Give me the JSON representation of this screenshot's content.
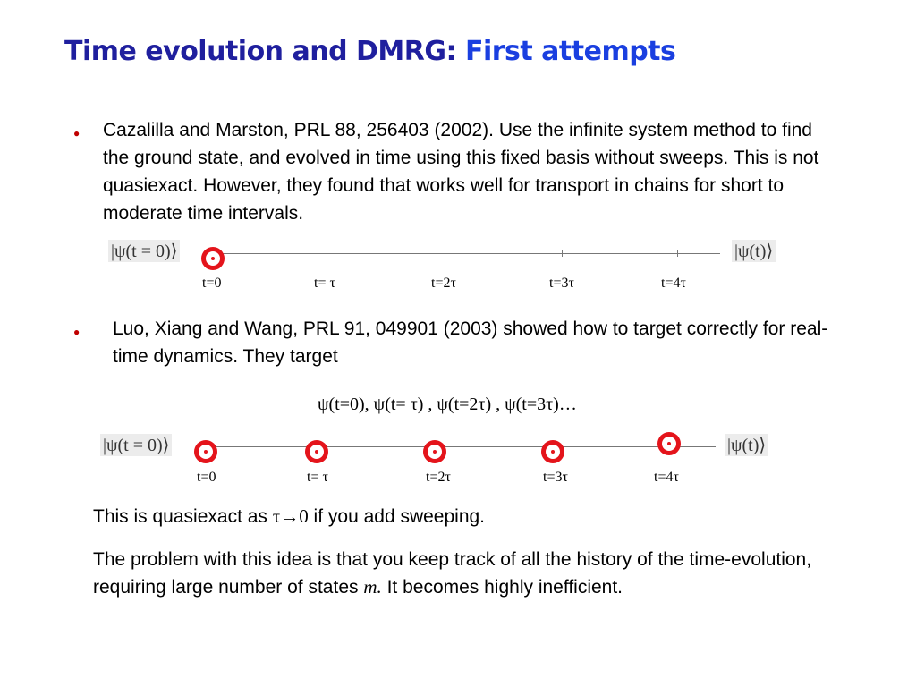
{
  "title": {
    "main": "Time evolution and DMRG:",
    "sub": "First attempts"
  },
  "bullet1": {
    "text": "Cazalilla and Marston, PRL 88, 256403 (2002). Use the infinite system method to find the ground state, and evolved in time using this fixed basis without sweeps. This is not quasiexact. However, they found that works well for transport in chains for short to moderate time intervals."
  },
  "timeline1": {
    "left_ket": "|ψ(t = 0)⟩",
    "right_ket": "|ψ(t)⟩",
    "labels": [
      "t=0",
      "t= τ",
      "t=2τ",
      "t=3τ",
      "t=4τ"
    ]
  },
  "bullet2": {
    "text": "Luo, Xiang and Wang, PRL 91, 049901 (2003) showed how to target correctly for real-time dynamics. They target"
  },
  "equation": "ψ(t=0), ψ(t= τ) , ψ(t=2τ) , ψ(t=3τ)…",
  "timeline2": {
    "left_ket": "|ψ(t = 0)⟩",
    "right_ket": "|ψ(t)⟩",
    "labels": [
      "t=0",
      "t= τ",
      "t=2τ",
      "t=3τ",
      "t=4τ"
    ]
  },
  "para1": {
    "before": "This is quasiexact as ",
    "math": "τ→0",
    "after": " if you add sweeping."
  },
  "para2": {
    "before": "The problem with this idea is that you keep track of all the history of the time-evolution, requiring large number of states ",
    "math": "m.",
    "after": " It becomes highly inefficient."
  }
}
